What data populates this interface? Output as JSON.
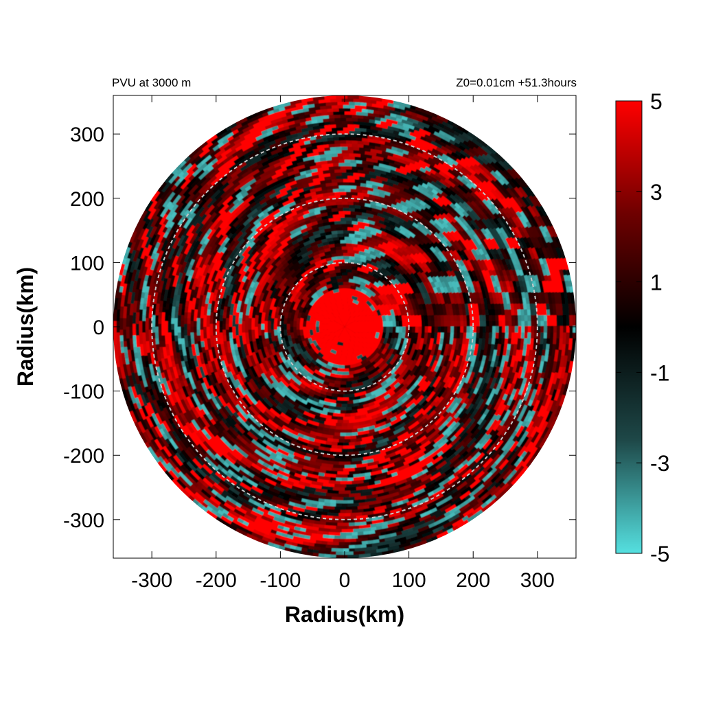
{
  "chart_data": {
    "type": "heatmap",
    "projection": "polar-disc",
    "title_left": "PVU at  3000 m",
    "title_right": "Z0=0.01cm  +51.3hours",
    "xlabel": "Radius(km)",
    "ylabel": "Radius(km)",
    "xlim": [
      -360,
      360
    ],
    "ylim": [
      -360,
      360
    ],
    "x_ticks": [
      -300,
      -200,
      -100,
      0,
      100,
      200,
      300
    ],
    "y_ticks": [
      300,
      200,
      100,
      0,
      -100,
      -200,
      -300
    ],
    "disc_radius_km": 360,
    "reference_circles_km": [
      100,
      200,
      300
    ],
    "colorbar": {
      "min": -5,
      "max": 5,
      "ticks": [
        5,
        3,
        1,
        -1,
        -3,
        -5
      ],
      "colors": [
        "#55e0e0",
        "#1e4848",
        "#000000",
        "#6e0000",
        "#ff0000"
      ]
    },
    "field_description": {
      "core_radius_km": 60,
      "core_value": 5
    }
  }
}
